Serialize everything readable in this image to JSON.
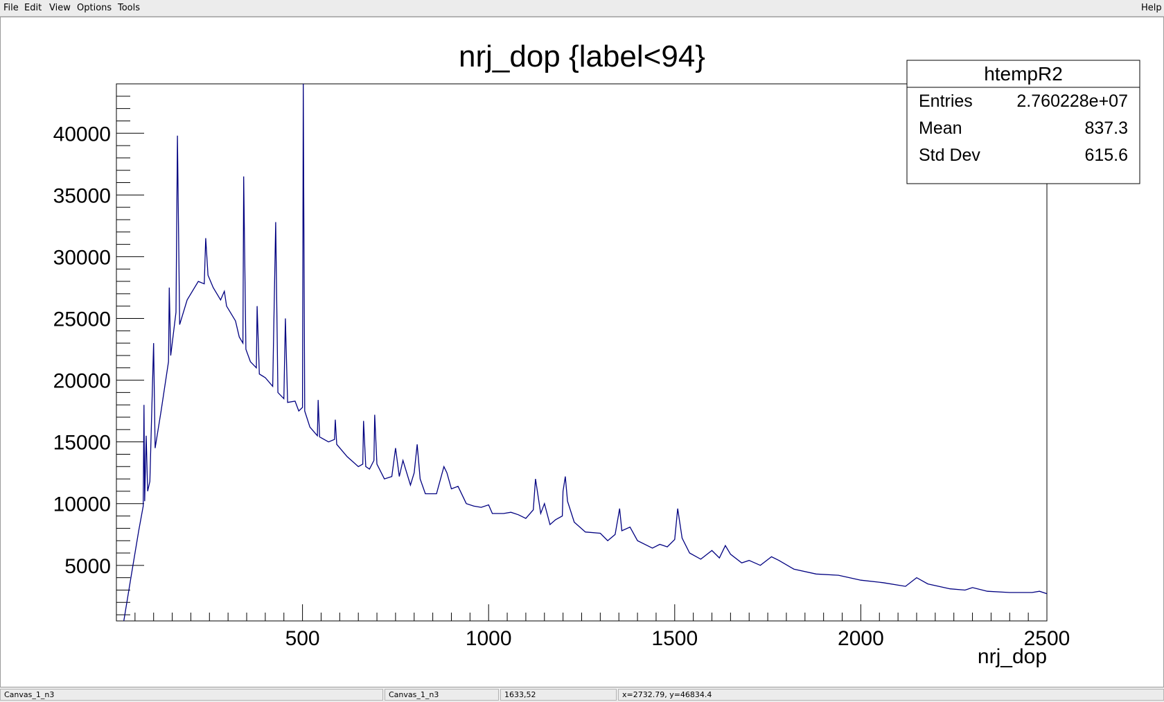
{
  "menu": {
    "file": "File",
    "edit": "Edit",
    "view": "View",
    "options": "Options",
    "tools": "Tools",
    "help": "Help"
  },
  "statusbar": {
    "cell1": "Canvas_1_n3",
    "cell2": "Canvas_1_n3",
    "cell3": "1633,52",
    "cell4": "x=2732.79, y=46834.4"
  },
  "stats_box": {
    "title": "htempR2",
    "rows": [
      {
        "label": "Entries",
        "value": "2.760228e+07"
      },
      {
        "label": "Mean",
        "value": "837.3"
      },
      {
        "label": "Std Dev",
        "value": "615.6"
      }
    ]
  },
  "colors": {
    "line": "#000080",
    "axis": "#000000"
  },
  "chart_data": {
    "type": "line",
    "title": "nrj_dop {label<94}",
    "xlabel": "nrj_dop",
    "ylabel": "",
    "xlim": [
      0,
      2500
    ],
    "ylim": [
      500,
      44000
    ],
    "xticks": [
      500,
      1000,
      1500,
      2000,
      2500
    ],
    "yticks": [
      5000,
      10000,
      15000,
      20000,
      25000,
      30000,
      35000,
      40000
    ],
    "grid": false,
    "series": [
      {
        "values": [
          [
            20,
            500
          ],
          [
            40,
            4200
          ],
          [
            60,
            7800
          ],
          [
            72,
            9800
          ],
          [
            74,
            18000
          ],
          [
            76,
            10200
          ],
          [
            80,
            15500
          ],
          [
            84,
            11000
          ],
          [
            90,
            11800
          ],
          [
            100,
            23000
          ],
          [
            104,
            14500
          ],
          [
            120,
            17500
          ],
          [
            140,
            21500
          ],
          [
            142,
            27500
          ],
          [
            146,
            22000
          ],
          [
            160,
            25500
          ],
          [
            164,
            39800
          ],
          [
            170,
            24500
          ],
          [
            190,
            26500
          ],
          [
            220,
            28000
          ],
          [
            236,
            27800
          ],
          [
            240,
            31500
          ],
          [
            246,
            28500
          ],
          [
            260,
            27500
          ],
          [
            280,
            26500
          ],
          [
            290,
            27200
          ],
          [
            296,
            26000
          ],
          [
            320,
            24800
          ],
          [
            330,
            23500
          ],
          [
            340,
            23000
          ],
          [
            342,
            36500
          ],
          [
            348,
            22500
          ],
          [
            360,
            21500
          ],
          [
            376,
            21000
          ],
          [
            378,
            26000
          ],
          [
            384,
            20500
          ],
          [
            400,
            20200
          ],
          [
            420,
            19500
          ],
          [
            428,
            32800
          ],
          [
            434,
            19000
          ],
          [
            450,
            18500
          ],
          [
            454,
            25000
          ],
          [
            460,
            18200
          ],
          [
            480,
            18300
          ],
          [
            490,
            17500
          ],
          [
            500,
            17800
          ],
          [
            502,
            44000
          ],
          [
            506,
            17500
          ],
          [
            520,
            16200
          ],
          [
            540,
            15500
          ],
          [
            542,
            18400
          ],
          [
            546,
            15400
          ],
          [
            570,
            15000
          ],
          [
            586,
            15200
          ],
          [
            588,
            16800
          ],
          [
            592,
            14800
          ],
          [
            620,
            13800
          ],
          [
            650,
            13000
          ],
          [
            662,
            13200
          ],
          [
            664,
            16700
          ],
          [
            670,
            13000
          ],
          [
            680,
            12800
          ],
          [
            692,
            13500
          ],
          [
            694,
            17200
          ],
          [
            700,
            13200
          ],
          [
            720,
            12000
          ],
          [
            740,
            12200
          ],
          [
            750,
            14500
          ],
          [
            760,
            12200
          ],
          [
            770,
            13500
          ],
          [
            790,
            11500
          ],
          [
            800,
            12500
          ],
          [
            808,
            14800
          ],
          [
            816,
            12000
          ],
          [
            830,
            10800
          ],
          [
            860,
            10800
          ],
          [
            880,
            13000
          ],
          [
            888,
            12500
          ],
          [
            900,
            11200
          ],
          [
            918,
            11400
          ],
          [
            940,
            10000
          ],
          [
            960,
            9800
          ],
          [
            980,
            9700
          ],
          [
            1000,
            9900
          ],
          [
            1010,
            9200
          ],
          [
            1040,
            9200
          ],
          [
            1060,
            9300
          ],
          [
            1080,
            9100
          ],
          [
            1100,
            8800
          ],
          [
            1120,
            9500
          ],
          [
            1126,
            12000
          ],
          [
            1140,
            9200
          ],
          [
            1150,
            10000
          ],
          [
            1165,
            8300
          ],
          [
            1180,
            8700
          ],
          [
            1198,
            9000
          ],
          [
            1200,
            11000
          ],
          [
            1206,
            12200
          ],
          [
            1212,
            10200
          ],
          [
            1230,
            8500
          ],
          [
            1260,
            7700
          ],
          [
            1300,
            7600
          ],
          [
            1320,
            7000
          ],
          [
            1340,
            7500
          ],
          [
            1352,
            9600
          ],
          [
            1358,
            7800
          ],
          [
            1380,
            8100
          ],
          [
            1400,
            7000
          ],
          [
            1440,
            6400
          ],
          [
            1460,
            6700
          ],
          [
            1480,
            6500
          ],
          [
            1500,
            7100
          ],
          [
            1508,
            9600
          ],
          [
            1520,
            7200
          ],
          [
            1540,
            6000
          ],
          [
            1570,
            5500
          ],
          [
            1600,
            6200
          ],
          [
            1620,
            5600
          ],
          [
            1636,
            6600
          ],
          [
            1650,
            5900
          ],
          [
            1680,
            5200
          ],
          [
            1700,
            5400
          ],
          [
            1730,
            5000
          ],
          [
            1760,
            5700
          ],
          [
            1780,
            5400
          ],
          [
            1820,
            4700
          ],
          [
            1880,
            4300
          ],
          [
            1940,
            4200
          ],
          [
            2000,
            3800
          ],
          [
            2060,
            3600
          ],
          [
            2120,
            3300
          ],
          [
            2150,
            4000
          ],
          [
            2180,
            3500
          ],
          [
            2240,
            3100
          ],
          [
            2280,
            3000
          ],
          [
            2300,
            3200
          ],
          [
            2340,
            2900
          ],
          [
            2400,
            2800
          ],
          [
            2460,
            2800
          ],
          [
            2480,
            2900
          ],
          [
            2500,
            2700
          ]
        ]
      }
    ]
  }
}
